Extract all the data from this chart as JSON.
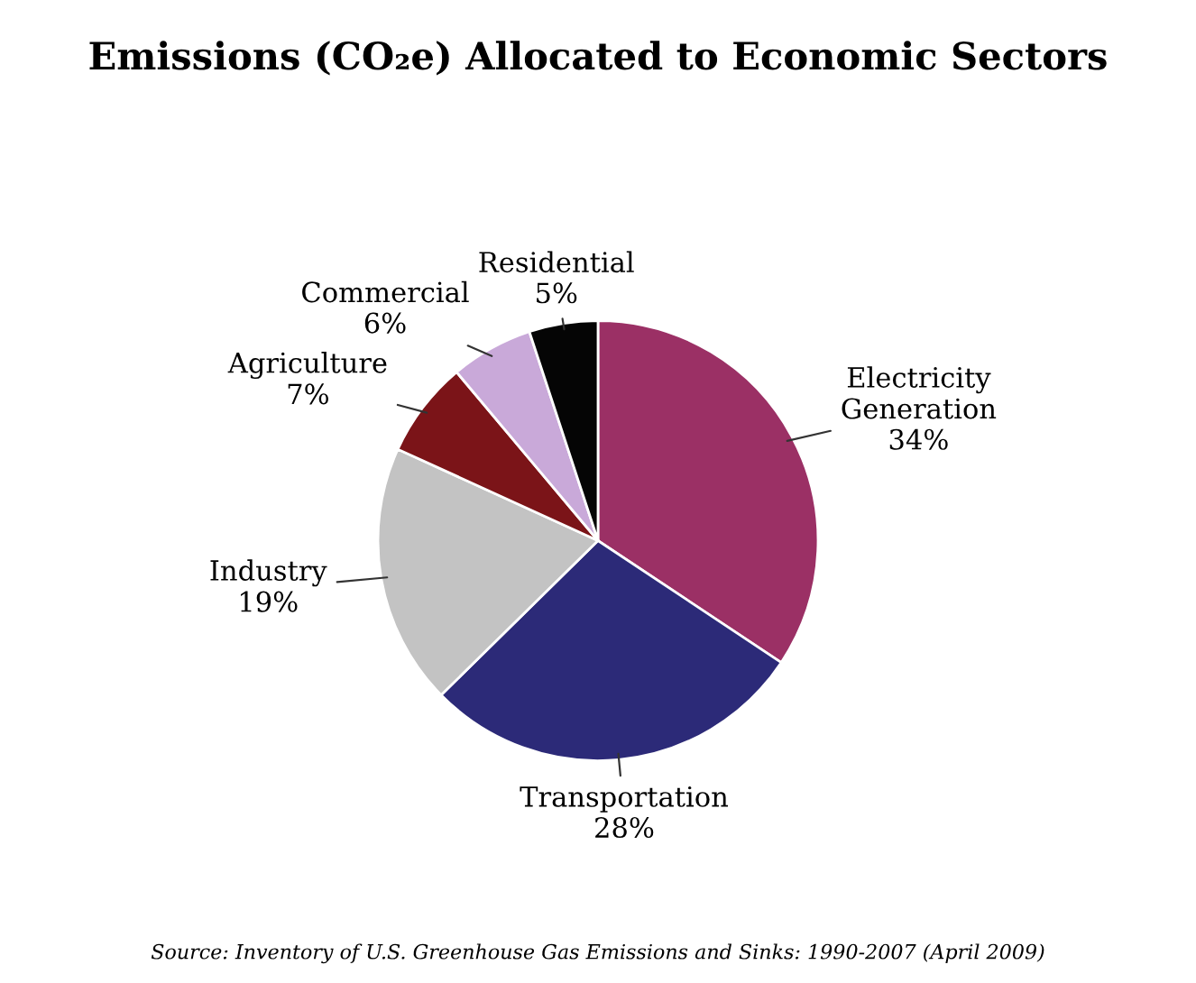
{
  "chart_data": {
    "type": "pie",
    "title": "Emissions (CO₂e) Allocated to Economic Sectors",
    "categories": [
      "Electricity\nGeneration",
      "Transportation",
      "Industry",
      "Agriculture",
      "Commercial",
      "Residential"
    ],
    "values": [
      34,
      28,
      19,
      7,
      6,
      5
    ],
    "value_labels": [
      "34%",
      "28%",
      "19%",
      "7%",
      "6%",
      "5%"
    ],
    "colors": [
      "#9b3065",
      "#2c2a78",
      "#c3c3c3",
      "#7b1418",
      "#c9a9d9",
      "#050505"
    ],
    "annotations": [
      "Source: Inventory of U.S. Greenhouse Gas Emissions and Sinks: 1990-2007 (April 2009)"
    ]
  }
}
